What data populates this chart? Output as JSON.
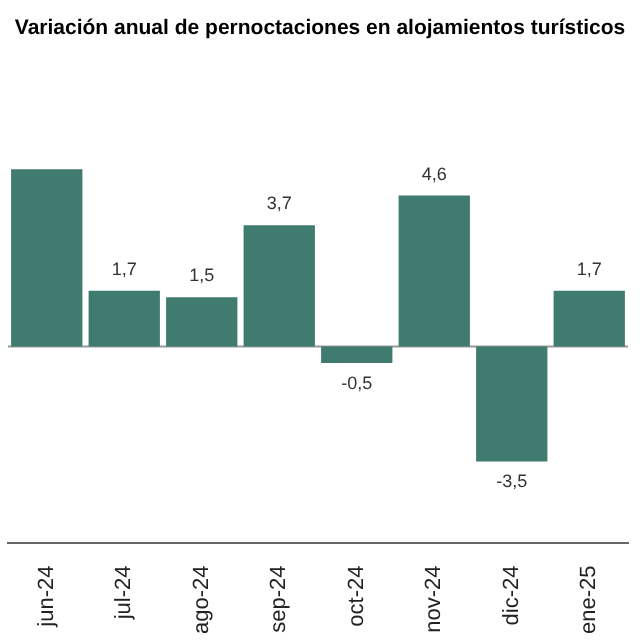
{
  "chart_data": {
    "type": "bar",
    "title": "Variación anual de pernoctaciones en alojamientos turísticos",
    "categories": [
      "jun-24",
      "jul-24",
      "ago-24",
      "sep-24",
      "oct-24",
      "nov-24",
      "dic-24",
      "ene-25"
    ],
    "series": [
      {
        "color": "#3f7b6f",
        "values": [
          5.4,
          1.7,
          1.5,
          3.7,
          -0.5,
          4.6,
          -3.5,
          1.7
        ],
        "value_labels": [
          null,
          "1,7",
          "1,5",
          "3,7",
          "-0,5",
          "4,6",
          "-3,5",
          "1,7"
        ]
      }
    ],
    "tick_labels": "x",
    "grid": false,
    "legend": false,
    "ref_lines": [
      {
        "axis": "y",
        "value": 0,
        "color": "#999999"
      }
    ]
  }
}
